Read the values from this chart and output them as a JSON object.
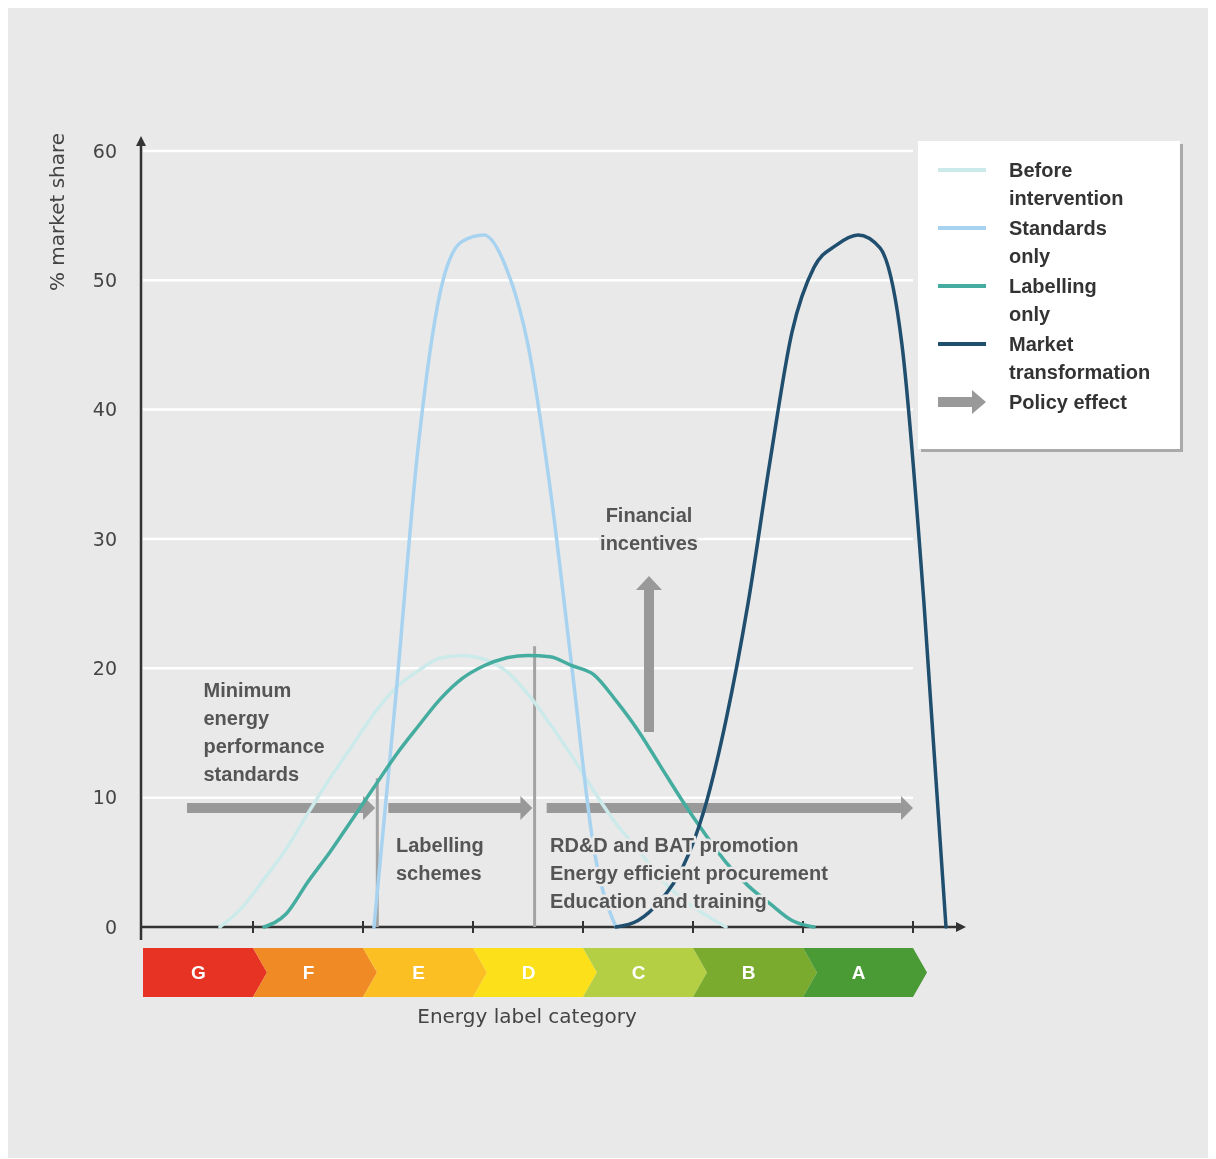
{
  "chart_data": {
    "type": "line",
    "xlabel": "Energy label category",
    "ylabel": "% market share",
    "categories": [
      null,
      null,
      "G",
      null,
      null,
      null,
      null,
      "F",
      null,
      null,
      null,
      null,
      "E",
      null,
      null,
      null,
      null,
      "D",
      null,
      null,
      null,
      null,
      "C",
      null,
      null,
      null,
      null,
      "B",
      null,
      null,
      null,
      null,
      "A",
      null,
      null,
      null,
      null
    ],
    "ylim": [
      0,
      61
    ],
    "yticks": [
      0,
      10,
      20,
      30,
      40,
      50,
      60
    ],
    "grid": "y",
    "legend": "top right",
    "marker": "none",
    "line_style": "solid",
    "series": [
      {
        "name": "Before intervention",
        "color": "#cdeaea",
        "values": [
          null,
          null,
          null,
          0,
          1.5,
          3.7,
          6,
          8.8,
          11.5,
          14,
          16.5,
          18.5,
          19.8,
          20.8,
          21,
          20.7,
          19.8,
          18,
          15.7,
          13.2,
          10.5,
          8,
          6,
          3.8,
          2.2,
          1,
          0,
          null,
          null,
          null,
          null,
          null,
          null,
          null,
          null,
          null,
          null
        ]
      },
      {
        "name": "Standards only",
        "color": "#a7d3f0",
        "values": [
          null,
          null,
          null,
          null,
          null,
          null,
          null,
          null,
          null,
          null,
          0,
          18,
          37,
          49,
          53,
          53.5,
          51,
          45,
          34,
          20,
          6,
          0,
          null,
          null,
          null,
          null,
          null,
          null,
          null,
          null,
          null,
          null,
          null,
          null,
          null,
          null,
          null
        ]
      },
      {
        "name": "Labelling only",
        "color": "#45aca0",
        "values": [
          null,
          null,
          null,
          null,
          null,
          0,
          1,
          3.5,
          5.8,
          8.3,
          10.8,
          13.3,
          15.5,
          17.6,
          19.2,
          20.2,
          20.8,
          21,
          20.9,
          20.2,
          19.5,
          17.5,
          15.2,
          12.5,
          9.8,
          7.3,
          5,
          3.2,
          1.8,
          0.5,
          0,
          null,
          null,
          null,
          null,
          null,
          null
        ]
      },
      {
        "name": "Market transformation",
        "color": "#1f4e6e",
        "values": [
          null,
          null,
          null,
          null,
          null,
          null,
          null,
          null,
          null,
          null,
          null,
          null,
          null,
          null,
          null,
          null,
          null,
          null,
          null,
          null,
          null,
          0,
          0.5,
          2,
          4.5,
          9,
          16,
          25,
          36,
          46,
          51,
          52.7,
          53.5,
          52.5,
          45,
          25,
          0
        ]
      }
    ],
    "annotations": [
      "Minimum energy performance standards",
      "Labelling schemes",
      "Financial incentives",
      "RD&D and BAT promotion",
      "Energy efficient procurement",
      "Education and training",
      "Policy effect"
    ]
  }
}
